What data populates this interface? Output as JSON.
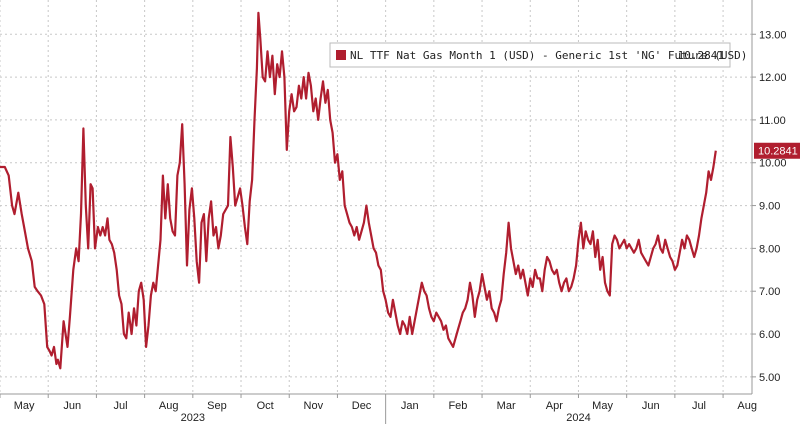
{
  "chart_data": {
    "type": "line",
    "title": "",
    "xlabel": "",
    "ylabel": "",
    "ylim": [
      4.6,
      13.8
    ],
    "yticks": [
      5.0,
      6.0,
      7.0,
      8.0,
      9.0,
      10.0,
      11.0,
      12.0,
      13.0
    ],
    "ytick_labels": [
      "5.00",
      "6.00",
      "7.00",
      "8.00",
      "9.00",
      "10.00",
      "11.00",
      "12.00",
      "13.00"
    ],
    "xlim": [
      0,
      15.6
    ],
    "x_unit": "months since May 2023",
    "xticks": [
      {
        "x": 0.5,
        "label": "May"
      },
      {
        "x": 1.5,
        "label": "Jun"
      },
      {
        "x": 2.5,
        "label": "Jul"
      },
      {
        "x": 3.5,
        "label": "Aug"
      },
      {
        "x": 4.5,
        "label": "Sep"
      },
      {
        "x": 5.5,
        "label": "Oct"
      },
      {
        "x": 6.5,
        "label": "Nov"
      },
      {
        "x": 7.5,
        "label": "Dec"
      },
      {
        "x": 8.5,
        "label": "Jan"
      },
      {
        "x": 9.5,
        "label": "Feb"
      },
      {
        "x": 10.5,
        "label": "Mar"
      },
      {
        "x": 11.5,
        "label": "Apr"
      },
      {
        "x": 12.5,
        "label": "May"
      },
      {
        "x": 13.5,
        "label": "Jun"
      },
      {
        "x": 14.5,
        "label": "Jul"
      },
      {
        "x": 15.5,
        "label": "Aug"
      }
    ],
    "vgrid_x": [
      0,
      1,
      2,
      3,
      4,
      5,
      6,
      7,
      8,
      9,
      10,
      11,
      12,
      13,
      14,
      15
    ],
    "years": [
      {
        "x": 4.0,
        "label": "2023"
      },
      {
        "x": 12.0,
        "label": "2024"
      }
    ],
    "year_divider_x": 8.0,
    "grid": true,
    "legend": {
      "position": "top-right",
      "text": "NL TTF Nat Gas Month 1 (USD) - Generic 1st 'NG' Future (USD)",
      "last_value": "10.2841"
    },
    "last_value_label": "10.2841",
    "series": [
      {
        "name": "NL TTF Nat Gas Month 1 (USD) - Generic 1st 'NG' Future (USD)",
        "color": "#b01e2f",
        "points": [
          [
            0.0,
            9.9
          ],
          [
            0.1,
            9.9
          ],
          [
            0.18,
            9.7
          ],
          [
            0.25,
            9.0
          ],
          [
            0.3,
            8.8
          ],
          [
            0.38,
            9.3
          ],
          [
            0.45,
            8.8
          ],
          [
            0.5,
            8.5
          ],
          [
            0.58,
            8.0
          ],
          [
            0.66,
            7.7
          ],
          [
            0.72,
            7.1
          ],
          [
            0.78,
            7.0
          ],
          [
            0.85,
            6.9
          ],
          [
            0.92,
            6.7
          ],
          [
            0.98,
            5.7
          ],
          [
            1.03,
            5.6
          ],
          [
            1.07,
            5.5
          ],
          [
            1.12,
            5.7
          ],
          [
            1.17,
            5.3
          ],
          [
            1.2,
            5.4
          ],
          [
            1.25,
            5.2
          ],
          [
            1.32,
            6.3
          ],
          [
            1.4,
            5.7
          ],
          [
            1.45,
            6.4
          ],
          [
            1.52,
            7.5
          ],
          [
            1.58,
            8.0
          ],
          [
            1.63,
            7.7
          ],
          [
            1.68,
            8.8
          ],
          [
            1.73,
            10.8
          ],
          [
            1.78,
            9.0
          ],
          [
            1.83,
            8.0
          ],
          [
            1.88,
            9.5
          ],
          [
            1.92,
            9.4
          ],
          [
            1.97,
            8.0
          ],
          [
            2.03,
            8.5
          ],
          [
            2.08,
            8.3
          ],
          [
            2.13,
            8.5
          ],
          [
            2.18,
            8.3
          ],
          [
            2.23,
            8.7
          ],
          [
            2.27,
            8.2
          ],
          [
            2.32,
            8.1
          ],
          [
            2.37,
            7.9
          ],
          [
            2.42,
            7.5
          ],
          [
            2.47,
            6.9
          ],
          [
            2.52,
            6.7
          ],
          [
            2.57,
            6.0
          ],
          [
            2.62,
            5.9
          ],
          [
            2.67,
            6.5
          ],
          [
            2.73,
            6.0
          ],
          [
            2.78,
            6.6
          ],
          [
            2.83,
            6.2
          ],
          [
            2.88,
            7.0
          ],
          [
            2.93,
            7.2
          ],
          [
            2.98,
            6.8
          ],
          [
            3.03,
            5.7
          ],
          [
            3.08,
            6.2
          ],
          [
            3.13,
            6.9
          ],
          [
            3.18,
            7.2
          ],
          [
            3.23,
            7.0
          ],
          [
            3.28,
            7.6
          ],
          [
            3.33,
            8.2
          ],
          [
            3.38,
            9.7
          ],
          [
            3.43,
            8.7
          ],
          [
            3.48,
            9.5
          ],
          [
            3.53,
            8.7
          ],
          [
            3.58,
            8.4
          ],
          [
            3.63,
            8.3
          ],
          [
            3.68,
            9.7
          ],
          [
            3.73,
            10.0
          ],
          [
            3.78,
            10.9
          ],
          [
            3.83,
            9.5
          ],
          [
            3.88,
            7.6
          ],
          [
            3.93,
            8.9
          ],
          [
            3.98,
            9.4
          ],
          [
            4.03,
            8.7
          ],
          [
            4.08,
            7.7
          ],
          [
            4.13,
            7.2
          ],
          [
            4.18,
            8.6
          ],
          [
            4.23,
            8.8
          ],
          [
            4.28,
            7.7
          ],
          [
            4.33,
            8.7
          ],
          [
            4.38,
            9.1
          ],
          [
            4.43,
            8.3
          ],
          [
            4.48,
            8.5
          ],
          [
            4.53,
            8.0
          ],
          [
            4.58,
            8.3
          ],
          [
            4.63,
            8.8
          ],
          [
            4.68,
            8.9
          ],
          [
            4.73,
            9.0
          ],
          [
            4.78,
            10.6
          ],
          [
            4.83,
            9.9
          ],
          [
            4.88,
            9.0
          ],
          [
            4.93,
            9.2
          ],
          [
            4.98,
            9.4
          ],
          [
            5.03,
            9.0
          ],
          [
            5.08,
            8.5
          ],
          [
            5.13,
            8.1
          ],
          [
            5.18,
            9.1
          ],
          [
            5.23,
            9.6
          ],
          [
            5.28,
            11.0
          ],
          [
            5.33,
            12.2
          ],
          [
            5.36,
            13.5
          ],
          [
            5.4,
            12.9
          ],
          [
            5.45,
            12.0
          ],
          [
            5.5,
            11.9
          ],
          [
            5.55,
            12.6
          ],
          [
            5.6,
            12.0
          ],
          [
            5.65,
            12.5
          ],
          [
            5.7,
            11.6
          ],
          [
            5.75,
            12.3
          ],
          [
            5.8,
            12.0
          ],
          [
            5.85,
            12.6
          ],
          [
            5.9,
            12.0
          ],
          [
            5.95,
            10.3
          ],
          [
            6.0,
            11.2
          ],
          [
            6.05,
            11.6
          ],
          [
            6.1,
            11.2
          ],
          [
            6.15,
            11.3
          ],
          [
            6.2,
            11.8
          ],
          [
            6.25,
            11.5
          ],
          [
            6.3,
            12.0
          ],
          [
            6.35,
            11.5
          ],
          [
            6.4,
            12.1
          ],
          [
            6.45,
            11.8
          ],
          [
            6.5,
            11.2
          ],
          [
            6.55,
            11.5
          ],
          [
            6.6,
            11.0
          ],
          [
            6.65,
            11.5
          ],
          [
            6.7,
            11.9
          ],
          [
            6.75,
            11.4
          ],
          [
            6.8,
            11.7
          ],
          [
            6.85,
            11.0
          ],
          [
            6.9,
            10.7
          ],
          [
            6.95,
            10.0
          ],
          [
            7.0,
            10.2
          ],
          [
            7.05,
            9.6
          ],
          [
            7.1,
            9.8
          ],
          [
            7.15,
            9.0
          ],
          [
            7.2,
            8.8
          ],
          [
            7.25,
            8.6
          ],
          [
            7.3,
            8.5
          ],
          [
            7.35,
            8.3
          ],
          [
            7.4,
            8.5
          ],
          [
            7.45,
            8.2
          ],
          [
            7.5,
            8.4
          ],
          [
            7.55,
            8.6
          ],
          [
            7.6,
            9.0
          ],
          [
            7.65,
            8.6
          ],
          [
            7.7,
            8.3
          ],
          [
            7.75,
            8.0
          ],
          [
            7.8,
            7.9
          ],
          [
            7.85,
            7.6
          ],
          [
            7.9,
            7.5
          ],
          [
            7.95,
            7.0
          ],
          [
            8.0,
            6.8
          ],
          [
            8.05,
            6.5
          ],
          [
            8.1,
            6.4
          ],
          [
            8.15,
            6.8
          ],
          [
            8.2,
            6.5
          ],
          [
            8.25,
            6.2
          ],
          [
            8.3,
            6.0
          ],
          [
            8.35,
            6.3
          ],
          [
            8.4,
            6.2
          ],
          [
            8.45,
            6.0
          ],
          [
            8.5,
            6.4
          ],
          [
            8.55,
            6.0
          ],
          [
            8.6,
            6.3
          ],
          [
            8.65,
            6.6
          ],
          [
            8.7,
            6.9
          ],
          [
            8.75,
            7.2
          ],
          [
            8.8,
            7.0
          ],
          [
            8.85,
            6.9
          ],
          [
            8.9,
            6.6
          ],
          [
            8.95,
            6.4
          ],
          [
            9.0,
            6.3
          ],
          [
            9.05,
            6.5
          ],
          [
            9.1,
            6.4
          ],
          [
            9.15,
            6.3
          ],
          [
            9.2,
            6.1
          ],
          [
            9.25,
            6.2
          ],
          [
            9.3,
            5.9
          ],
          [
            9.35,
            5.8
          ],
          [
            9.4,
            5.7
          ],
          [
            9.45,
            5.9
          ],
          [
            9.5,
            6.1
          ],
          [
            9.55,
            6.3
          ],
          [
            9.6,
            6.5
          ],
          [
            9.65,
            6.6
          ],
          [
            9.7,
            6.8
          ],
          [
            9.75,
            7.2
          ],
          [
            9.8,
            6.9
          ],
          [
            9.85,
            6.4
          ],
          [
            9.9,
            6.8
          ],
          [
            9.95,
            7.0
          ],
          [
            10.0,
            7.4
          ],
          [
            10.05,
            7.1
          ],
          [
            10.1,
            6.8
          ],
          [
            10.15,
            7.0
          ],
          [
            10.2,
            6.6
          ],
          [
            10.25,
            6.5
          ],
          [
            10.3,
            6.3
          ],
          [
            10.35,
            6.6
          ],
          [
            10.4,
            6.8
          ],
          [
            10.45,
            7.4
          ],
          [
            10.5,
            7.9
          ],
          [
            10.55,
            8.6
          ],
          [
            10.6,
            8.0
          ],
          [
            10.65,
            7.7
          ],
          [
            10.7,
            7.4
          ],
          [
            10.75,
            7.6
          ],
          [
            10.8,
            7.3
          ],
          [
            10.85,
            7.5
          ],
          [
            10.9,
            7.2
          ],
          [
            10.95,
            6.9
          ],
          [
            11.0,
            7.3
          ],
          [
            11.05,
            7.1
          ],
          [
            11.1,
            7.5
          ],
          [
            11.15,
            7.3
          ],
          [
            11.2,
            7.3
          ],
          [
            11.25,
            7.0
          ],
          [
            11.3,
            7.5
          ],
          [
            11.35,
            7.8
          ],
          [
            11.4,
            7.7
          ],
          [
            11.45,
            7.5
          ],
          [
            11.5,
            7.4
          ],
          [
            11.55,
            7.5
          ],
          [
            11.6,
            7.2
          ],
          [
            11.65,
            7.0
          ],
          [
            11.7,
            7.2
          ],
          [
            11.75,
            7.3
          ],
          [
            11.8,
            7.0
          ],
          [
            11.85,
            7.1
          ],
          [
            11.9,
            7.3
          ],
          [
            11.95,
            7.6
          ],
          [
            12.0,
            8.2
          ],
          [
            12.05,
            8.6
          ],
          [
            12.1,
            8.0
          ],
          [
            12.15,
            8.4
          ],
          [
            12.2,
            8.2
          ],
          [
            12.25,
            8.1
          ],
          [
            12.3,
            8.4
          ],
          [
            12.35,
            7.8
          ],
          [
            12.4,
            8.2
          ],
          [
            12.45,
            7.5
          ],
          [
            12.5,
            7.8
          ],
          [
            12.55,
            7.2
          ],
          [
            12.6,
            7.0
          ],
          [
            12.65,
            6.9
          ],
          [
            12.7,
            8.1
          ],
          [
            12.75,
            8.3
          ],
          [
            12.8,
            8.2
          ],
          [
            12.85,
            8.0
          ],
          [
            12.9,
            8.1
          ],
          [
            12.95,
            8.2
          ],
          [
            13.0,
            8.0
          ],
          [
            13.05,
            8.1
          ],
          [
            13.1,
            8.0
          ],
          [
            13.15,
            7.9
          ],
          [
            13.2,
            8.0
          ],
          [
            13.25,
            8.2
          ],
          [
            13.3,
            7.9
          ],
          [
            13.35,
            7.8
          ],
          [
            13.4,
            7.7
          ],
          [
            13.45,
            7.6
          ],
          [
            13.5,
            7.8
          ],
          [
            13.55,
            8.0
          ],
          [
            13.6,
            8.1
          ],
          [
            13.65,
            8.3
          ],
          [
            13.7,
            8.0
          ],
          [
            13.75,
            7.9
          ],
          [
            13.8,
            8.2
          ],
          [
            13.85,
            8.0
          ],
          [
            13.9,
            7.8
          ],
          [
            13.95,
            7.7
          ],
          [
            14.0,
            7.5
          ],
          [
            14.05,
            7.6
          ],
          [
            14.1,
            7.9
          ],
          [
            14.15,
            8.2
          ],
          [
            14.2,
            8.0
          ],
          [
            14.25,
            8.3
          ],
          [
            14.3,
            8.2
          ],
          [
            14.35,
            8.0
          ],
          [
            14.4,
            7.8
          ],
          [
            14.45,
            8.0
          ],
          [
            14.5,
            8.3
          ],
          [
            14.55,
            8.7
          ],
          [
            14.6,
            9.0
          ],
          [
            14.65,
            9.3
          ],
          [
            14.7,
            9.8
          ],
          [
            14.75,
            9.6
          ],
          [
            14.8,
            9.9
          ],
          [
            14.85,
            10.28
          ]
        ]
      }
    ]
  }
}
